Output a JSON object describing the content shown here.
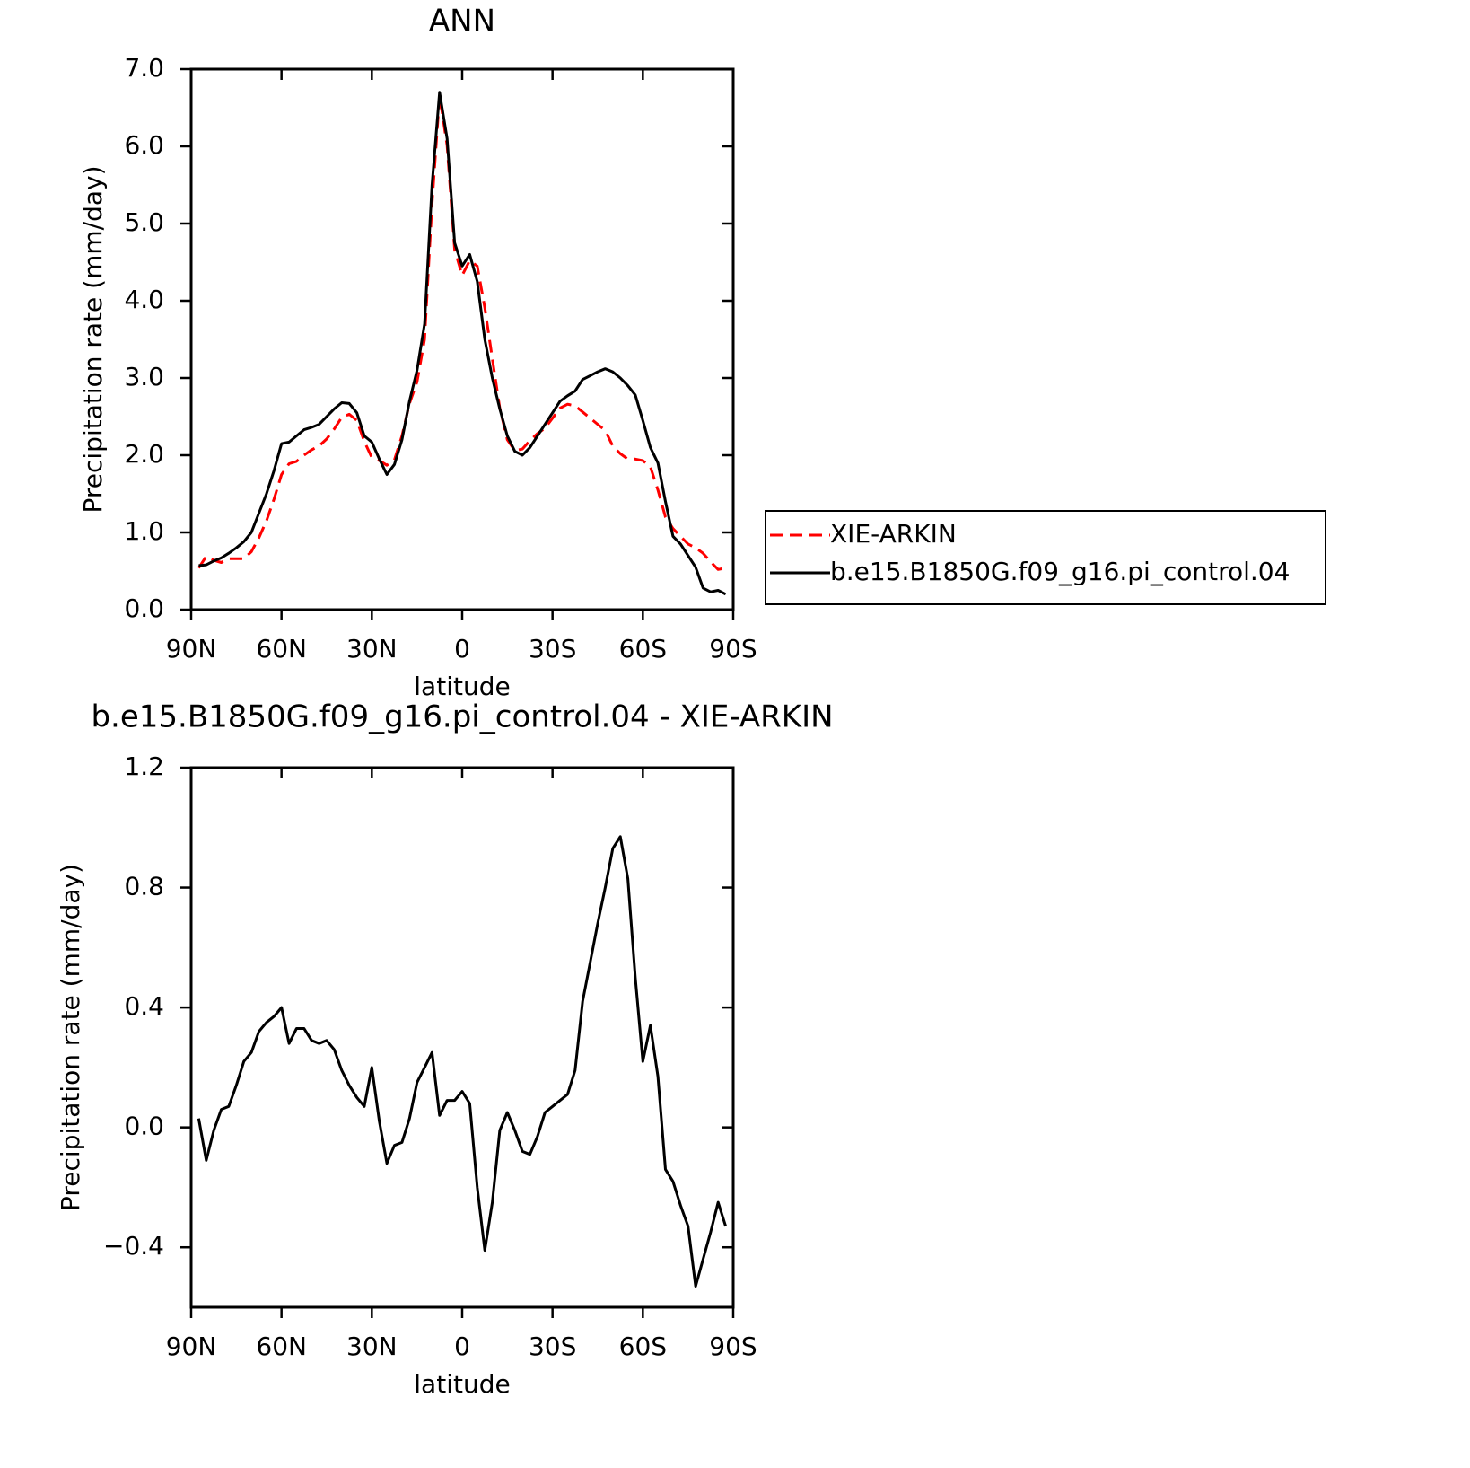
{
  "chart_data": [
    {
      "type": "line",
      "title": "ANN",
      "xlabel": "latitude",
      "ylabel": "Precipitation rate (mm/day)",
      "x": [
        87.5,
        85,
        82.5,
        80,
        77.5,
        75,
        72.5,
        70,
        67.5,
        65,
        62.5,
        60,
        57.5,
        55,
        52.5,
        50,
        47.5,
        45,
        42.5,
        40,
        37.5,
        35,
        32.5,
        30,
        27.5,
        25,
        22.5,
        20,
        17.5,
        15,
        12.5,
        10,
        7.5,
        5,
        2.5,
        0,
        -2.5,
        -5,
        -7.5,
        -10,
        -12.5,
        -15,
        -17.5,
        -20,
        -22.5,
        -25,
        -27.5,
        -30,
        -32.5,
        -35,
        -37.5,
        -40,
        -42.5,
        -45,
        -47.5,
        -50,
        -52.5,
        -55,
        -57.5,
        -60,
        -62.5,
        -65,
        -67.5,
        -70,
        -72.5,
        -75,
        -77.5,
        -80,
        -82.5,
        -85,
        -87.5
      ],
      "xlim": [
        90,
        -90
      ],
      "xticks": [
        {
          "value": 90,
          "label": "90N"
        },
        {
          "value": 60,
          "label": "60N"
        },
        {
          "value": 30,
          "label": "30N"
        },
        0,
        {
          "value": -30,
          "label": "30S"
        },
        {
          "value": -60,
          "label": "60S"
        },
        {
          "value": -90,
          "label": "90S"
        }
      ],
      "ylim": [
        0,
        7
      ],
      "yticks": [
        {
          "value": 0,
          "label": "0.0"
        },
        {
          "value": 1,
          "label": "1.0"
        },
        {
          "value": 2,
          "label": "2.0"
        },
        {
          "value": 3,
          "label": "3.0"
        },
        {
          "value": 4,
          "label": "4.0"
        },
        {
          "value": 5,
          "label": "5.0"
        },
        {
          "value": 6,
          "label": "6.0"
        },
        {
          "value": 7,
          "label": "7.0"
        }
      ],
      "legend": "right",
      "series": [
        {
          "name": "XIE-ARKIN",
          "color": "#ff0000",
          "line_style": "dashed",
          "values": [
            0.54,
            0.69,
            0.64,
            0.61,
            0.66,
            0.66,
            0.66,
            0.75,
            0.93,
            1.15,
            1.43,
            1.75,
            1.89,
            1.92,
            2.0,
            2.07,
            2.12,
            2.21,
            2.34,
            2.49,
            2.53,
            2.45,
            2.18,
            1.97,
            1.93,
            1.87,
            1.94,
            2.25,
            2.67,
            2.95,
            3.5,
            5.25,
            6.66,
            6.01,
            4.66,
            4.33,
            4.52,
            4.45,
            3.91,
            3.25,
            2.61,
            2.2,
            2.06,
            2.08,
            2.19,
            2.28,
            2.35,
            2.48,
            2.61,
            2.66,
            2.64,
            2.56,
            2.48,
            2.4,
            2.32,
            2.12,
            2.02,
            1.95,
            1.95,
            1.93,
            1.85,
            1.55,
            1.2,
            1.05,
            0.95,
            0.85,
            0.8,
            0.73,
            0.62,
            0.52,
            0.54
          ]
        },
        {
          "name": "b.e15.B1850G.f09_g16.pi_control.04",
          "color": "#000000",
          "line_style": "solid",
          "values": [
            0.57,
            0.58,
            0.63,
            0.67,
            0.73,
            0.8,
            0.88,
            1.0,
            1.25,
            1.5,
            1.8,
            2.15,
            2.17,
            2.25,
            2.33,
            2.36,
            2.4,
            2.5,
            2.6,
            2.68,
            2.67,
            2.55,
            2.25,
            2.17,
            1.95,
            1.75,
            1.88,
            2.2,
            2.7,
            3.1,
            3.7,
            5.5,
            6.7,
            6.1,
            4.75,
            4.45,
            4.6,
            4.25,
            3.5,
            3.0,
            2.6,
            2.25,
            2.05,
            2.0,
            2.1,
            2.25,
            2.4,
            2.55,
            2.7,
            2.77,
            2.83,
            2.98,
            3.03,
            3.08,
            3.12,
            3.08,
            3.0,
            2.9,
            2.78,
            2.45,
            2.1,
            1.9,
            1.4,
            0.95,
            0.85,
            0.7,
            0.55,
            0.28,
            0.23,
            0.25,
            0.2
          ]
        }
      ]
    },
    {
      "type": "line",
      "title": "b.e15.B1850G.f09_g16.pi_control.04 - XIE-ARKIN",
      "xlabel": "latitude",
      "ylabel": "Precipitation rate (mm/day)",
      "x": [
        87.5,
        85,
        82.5,
        80,
        77.5,
        75,
        72.5,
        70,
        67.5,
        65,
        62.5,
        60,
        57.5,
        55,
        52.5,
        50,
        47.5,
        45,
        42.5,
        40,
        37.5,
        35,
        32.5,
        30,
        27.5,
        25,
        22.5,
        20,
        17.5,
        15,
        12.5,
        10,
        7.5,
        5,
        2.5,
        0,
        -2.5,
        -5,
        -7.5,
        -10,
        -12.5,
        -15,
        -17.5,
        -20,
        -22.5,
        -25,
        -27.5,
        -30,
        -32.5,
        -35,
        -37.5,
        -40,
        -42.5,
        -45,
        -47.5,
        -50,
        -52.5,
        -55,
        -57.5,
        -60,
        -62.5,
        -65,
        -67.5,
        -70,
        -72.5,
        -75,
        -77.5,
        -80,
        -82.5,
        -85,
        -87.5
      ],
      "xlim": [
        90,
        -90
      ],
      "xticks": [
        {
          "value": 90,
          "label": "90N"
        },
        {
          "value": 60,
          "label": "60N"
        },
        {
          "value": 30,
          "label": "30N"
        },
        0,
        {
          "value": -30,
          "label": "30S"
        },
        {
          "value": -60,
          "label": "60S"
        },
        {
          "value": -90,
          "label": "90S"
        }
      ],
      "ylim": [
        -0.6,
        1.2
      ],
      "yticks": [
        {
          "value": -0.4,
          "label": "−0.4"
        },
        {
          "value": 0,
          "label": "0.0"
        },
        0.4,
        0.8,
        1.2
      ],
      "series": [
        {
          "color": "#000000",
          "line_style": "solid",
          "values": [
            0.03,
            -0.11,
            -0.01,
            0.06,
            0.07,
            0.14,
            0.22,
            0.25,
            0.32,
            0.35,
            0.37,
            0.4,
            0.28,
            0.33,
            0.33,
            0.29,
            0.28,
            0.29,
            0.26,
            0.19,
            0.14,
            0.1,
            0.07,
            0.2,
            0.02,
            -0.12,
            -0.06,
            -0.05,
            0.03,
            0.15,
            0.2,
            0.25,
            0.04,
            0.09,
            0.09,
            0.12,
            0.08,
            -0.2,
            -0.41,
            -0.25,
            -0.01,
            0.05,
            -0.01,
            -0.08,
            -0.09,
            -0.03,
            0.05,
            0.07,
            0.09,
            0.11,
            0.19,
            0.42,
            0.55,
            0.68,
            0.8,
            0.93,
            0.97,
            0.83,
            0.5,
            0.22,
            0.34,
            0.17,
            -0.14,
            -0.18,
            -0.26,
            -0.33,
            -0.53,
            -0.44,
            -0.35,
            -0.25,
            -0.33
          ]
        }
      ]
    }
  ]
}
